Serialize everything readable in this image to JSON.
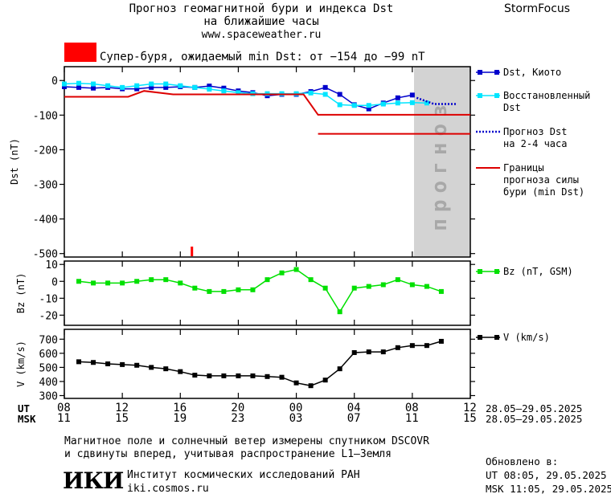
{
  "header": {
    "title_line1": "Прогноз геомагнитной бури и индекса Dst",
    "title_line2": "на ближайшие часы",
    "url": "www.spaceweather.ru",
    "brand": "StormFocus",
    "alert_text": "Супер-буря, ожидаемый min Dst: от −154 до −99 nT",
    "alert_color": "#ff0000"
  },
  "legend": {
    "dst_kyoto": "Dst, Киото",
    "dst_restored_1": "Восстановленный",
    "dst_restored_2": "Dst",
    "forecast_1": "Прогноз Dst",
    "forecast_2": "на 2-4 часа",
    "bounds_1": "Границы",
    "bounds_2": "прогноза силы",
    "bounds_3": "бури (min Dst)",
    "bz": "Bz (nT, GSM)",
    "v": "V (km/s)"
  },
  "axes": {
    "ut_label": "UT",
    "msk_label": "MSK",
    "ut_ticks": [
      "08",
      "12",
      "16",
      "20",
      "00",
      "04",
      "08",
      "12"
    ],
    "msk_ticks": [
      "11",
      "15",
      "19",
      "23",
      "03",
      "07",
      "11",
      "15"
    ],
    "ut_range": "28.05–29.05.2025",
    "msk_range": "28.05–29.05.2025"
  },
  "footer": {
    "note_1": "Магнитное поле и солнечный ветер измерены спутником DSCOVR",
    "note_2": "и сдвинуты вперед, учитывая распространение L1–Земля",
    "logo": "ИКИ",
    "institute": "Институт космических исследований РАН",
    "site": "iki.cosmos.ru",
    "updated_label": "Обновлено в:",
    "updated_ut": "UT  08:05, 29.05.2025",
    "updated_msk": "MSK 11:05, 29.05.2025"
  },
  "chart_data": [
    {
      "type": "line",
      "ylabel": "Dst (nT)",
      "ylim": [
        -510,
        40
      ],
      "yticks": [
        0,
        -100,
        -200,
        -300,
        -400,
        -500
      ],
      "x_hours_ut": [
        8,
        32
      ],
      "forecast_region": [
        8.0,
        12.0
      ],
      "forecast_label": "прогноз",
      "series": [
        {
          "name": "Dst, Киото",
          "color": "#0000cc",
          "x": [
            8,
            9,
            10,
            11,
            12,
            13,
            14,
            15,
            16,
            17,
            18,
            19,
            20,
            21,
            22,
            23,
            24,
            25,
            26,
            27,
            28,
            29,
            30,
            31,
            32
          ],
          "y": [
            -18,
            -20,
            -22,
            -20,
            -24,
            -24,
            -20,
            -20,
            -18,
            -20,
            -16,
            -22,
            -30,
            -35,
            -44,
            -40,
            -40,
            -32,
            -20,
            -40,
            -70,
            -82,
            -65,
            -50,
            -42
          ]
        },
        {
          "name": "Восстановленный Dst",
          "color": "#00e5ff",
          "x": [
            8,
            9,
            10,
            11,
            12,
            13,
            14,
            15,
            16,
            17,
            18,
            19,
            20,
            21,
            22,
            23,
            24,
            25,
            26,
            27,
            28,
            29,
            30,
            31,
            32,
            33
          ],
          "y": [
            -10,
            -8,
            -10,
            -15,
            -20,
            -15,
            -10,
            -10,
            -15,
            -20,
            -25,
            -30,
            -35,
            -38,
            -38,
            -38,
            -38,
            -36,
            -40,
            -70,
            -72,
            -72,
            -68,
            -65,
            -64,
            -65
          ]
        },
        {
          "name": "Прогноз Dst",
          "color": "#0000cc",
          "style": "dotted",
          "x": [
            32.3,
            33.5,
            35.0
          ],
          "y": [
            -50,
            -68,
            -68
          ]
        },
        {
          "name": "min Dst (upper)",
          "color": "#dd0000",
          "x": [
            8,
            12.4,
            13.5,
            15.5,
            24.5,
            25.5,
            36
          ],
          "y": [
            -47,
            -47,
            -30,
            -40,
            -40,
            -99,
            -99
          ]
        },
        {
          "name": "min Dst (lower)",
          "color": "#dd0000",
          "x": [
            25.5,
            36
          ],
          "y": [
            -154,
            -154
          ]
        }
      ],
      "event_marker_x": 16.8
    },
    {
      "type": "line",
      "ylabel": "Bz (nT)",
      "ylim": [
        -26,
        12
      ],
      "yticks": [
        10,
        0,
        -10,
        -20
      ],
      "series": [
        {
          "name": "Bz (nT, GSM)",
          "color": "#00e000",
          "x": [
            9,
            10,
            11,
            12,
            13,
            14,
            15,
            16,
            17,
            18,
            19,
            20,
            21,
            22,
            23,
            24,
            25,
            26,
            27,
            28,
            29,
            30,
            31,
            32,
            33,
            34
          ],
          "y": [
            0,
            -1,
            -1,
            -1,
            0,
            1,
            1,
            -1,
            -4,
            -6,
            -6,
            -5,
            -5,
            1,
            5,
            7,
            1,
            -4,
            -18,
            -4,
            -3,
            -2,
            1,
            -2,
            -3,
            -6
          ]
        }
      ]
    },
    {
      "type": "line",
      "ylabel": "V (km/s)",
      "ylim": [
        280,
        770
      ],
      "yticks": [
        700,
        600,
        500,
        400,
        300
      ],
      "series": [
        {
          "name": "V (km/s)",
          "color": "#000000",
          "x": [
            9,
            10,
            11,
            12,
            13,
            14,
            15,
            16,
            17,
            18,
            19,
            20,
            21,
            22,
            23,
            24,
            25,
            26,
            27,
            28,
            29,
            30,
            31,
            32,
            33,
            34
          ],
          "y": [
            540,
            535,
            525,
            520,
            515,
            500,
            490,
            470,
            445,
            440,
            440,
            440,
            440,
            435,
            430,
            390,
            370,
            410,
            490,
            605,
            610,
            610,
            640,
            655,
            655,
            685
          ]
        }
      ]
    }
  ]
}
